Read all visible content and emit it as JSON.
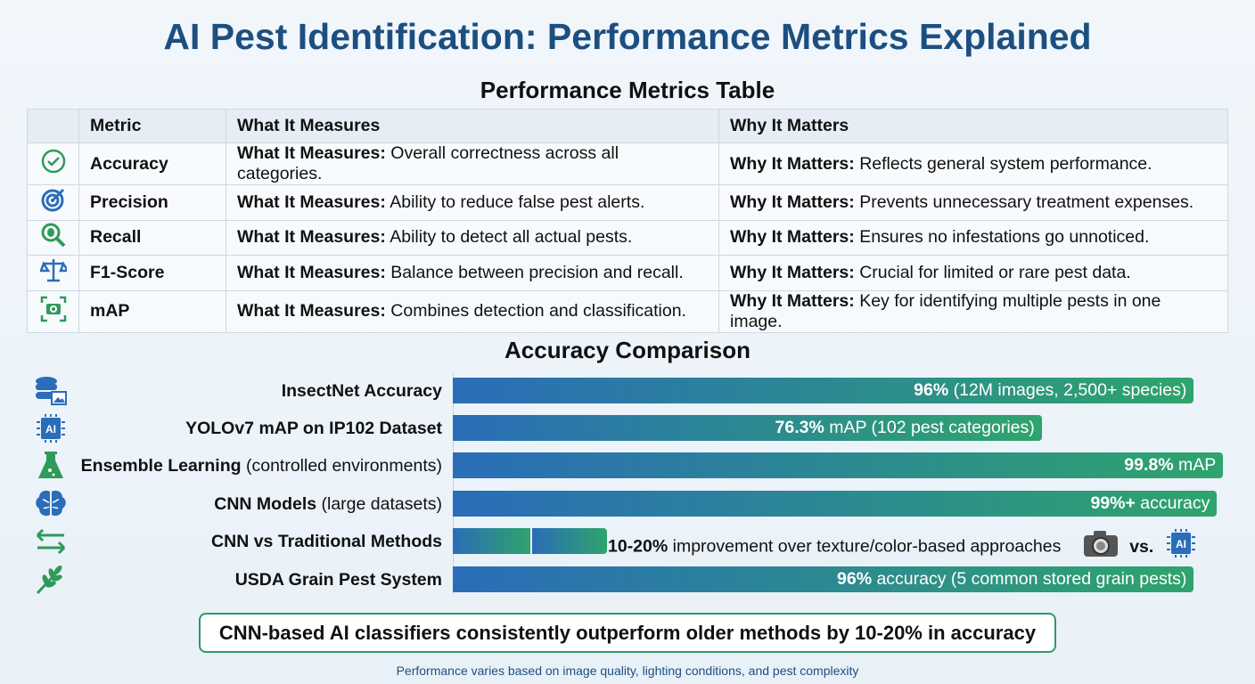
{
  "title": "AI Pest Identification: Performance Metrics Explained",
  "table": {
    "heading": "Performance Metrics Table",
    "headers": [
      "",
      "Metric",
      "What It Measures",
      "Why It Matters"
    ],
    "measures_prefix": "What It Measures:",
    "matters_prefix": "Why It Matters:",
    "rows": [
      {
        "icon": "check-circle-icon",
        "metric": "Accuracy",
        "measures": "Overall correctness across all categories.",
        "matters": "Reflects general system performance."
      },
      {
        "icon": "target-icon",
        "metric": "Precision",
        "measures": "Ability to reduce false pest alerts.",
        "matters": "Prevents unnecessary treatment expenses."
      },
      {
        "icon": "bug-magnifier-icon",
        "metric": "Recall",
        "measures": "Ability to detect all actual pests.",
        "matters": "Ensures no infestations go unnoticed."
      },
      {
        "icon": "scale-icon",
        "metric": "F1-Score",
        "measures": "Balance between precision and recall.",
        "matters": "Crucial for limited or rare pest data."
      },
      {
        "icon": "camera-scan-icon",
        "metric": "mAP",
        "measures": "Combines detection and classification.",
        "matters": "Key for identifying multiple pests in one image."
      }
    ]
  },
  "chart_data": {
    "type": "bar",
    "title": "Accuracy Comparison",
    "orientation": "horizontal",
    "xlim": [
      0,
      100
    ],
    "colors": {
      "start": "#2a6db8",
      "end": "#2fa46c"
    },
    "categories": [
      {
        "bold": "InsectNet Accuracy",
        "rest": "",
        "icon": "database-image-icon"
      },
      {
        "bold": "YOLOv7 mAP on IP102 Dataset",
        "rest": "",
        "icon": "ai-chip-icon"
      },
      {
        "bold": "Ensemble Learning",
        "rest": " (controlled environments)",
        "icon": "flask-icon"
      },
      {
        "bold": "CNN Models",
        "rest": " (large datasets)",
        "icon": "brain-icon"
      },
      {
        "bold": "CNN vs Traditional Methods",
        "rest": "",
        "icon": "swap-arrows-icon"
      },
      {
        "bold": "USDA Grain Pest System",
        "rest": "",
        "icon": "wheat-icon"
      }
    ],
    "values": [
      96,
      76.3,
      99.8,
      99,
      20,
      96
    ],
    "segments": [
      null,
      null,
      null,
      null,
      [
        10,
        20
      ],
      null
    ],
    "labels": [
      {
        "bold": "96%",
        "rest": " (12M images, 2,500+ species)"
      },
      {
        "bold": "76.3%",
        "rest": " mAP (102 pest categories)"
      },
      {
        "bold": "99.8%",
        "rest": " mAP"
      },
      {
        "bold": "99%+",
        "rest": " accuracy"
      },
      {
        "bold": "10-20%",
        "rest": " improvement over texture/color-based approaches",
        "vs": "vs."
      },
      {
        "bold": "96%",
        "rest": " accuracy (5 common stored grain pests)"
      }
    ]
  },
  "callout": "CNN-based AI classifiers consistently outperform older methods by 10-20% in accuracy",
  "footer": "Performance varies based on image quality, lighting conditions, and pest complexity"
}
